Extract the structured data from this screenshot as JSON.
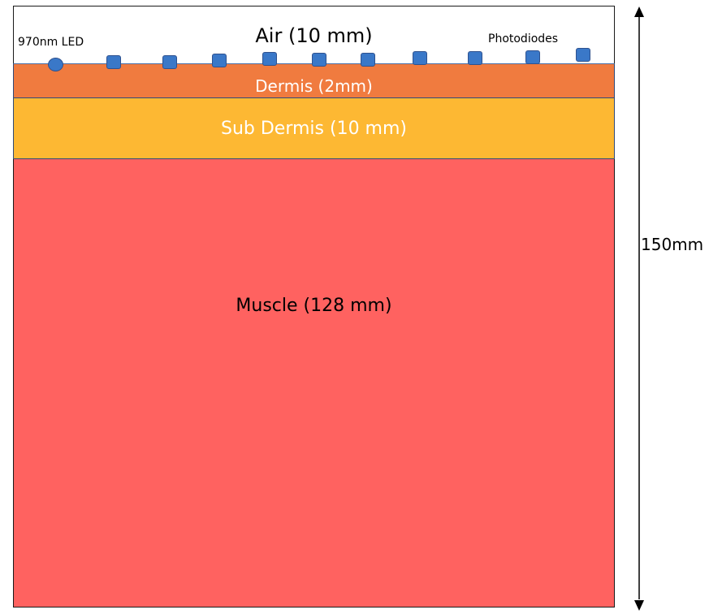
{
  "layers": {
    "air": {
      "label": "Air (10 mm)",
      "color": "#ffffff"
    },
    "dermis": {
      "label": "Dermis (2mm)",
      "color": "#f07b3f"
    },
    "sub_dermis": {
      "label": "Sub Dermis (10 mm)",
      "color": "#fdb833"
    },
    "muscle": {
      "label": "Muscle (128 mm)",
      "color": "#ff6260"
    }
  },
  "led": {
    "label": "970nm LED",
    "color": "#3a78c8",
    "icon": "led-circle"
  },
  "photodiodes": {
    "label": "Photodiodes",
    "count": 10,
    "color": "#3a78c8",
    "icon": "photodiode-square"
  },
  "dimension": {
    "label": "150mm",
    "icon": "double-headed-arrow"
  }
}
